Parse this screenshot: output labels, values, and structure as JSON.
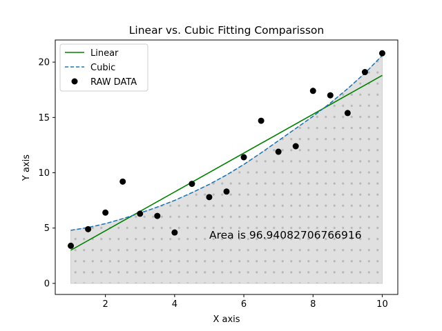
{
  "chart_data": {
    "type": "scatter",
    "title": "Linear vs. Cubic Fitting Comparisson",
    "xlabel": "X axis",
    "ylabel": "Y axis",
    "xlim": [
      0.55,
      10.45
    ],
    "ylim": [
      -1.0,
      22.0
    ],
    "xticks": [
      2,
      4,
      6,
      8,
      10
    ],
    "yticks": [
      0,
      5,
      10,
      15,
      20
    ],
    "grid": false,
    "legend_position": "top-left",
    "annotation": "Area is 96.94082706766916",
    "series": [
      {
        "name": "Linear",
        "style": "line",
        "color": "#008000",
        "x": [
          1,
          10
        ],
        "y": [
          3.0,
          18.8
        ]
      },
      {
        "name": "Cubic",
        "style": "dashed",
        "color": "#1f77b4",
        "x": [
          1,
          1.5,
          2,
          2.5,
          3,
          3.5,
          4,
          4.5,
          5,
          5.5,
          6,
          6.5,
          7,
          7.5,
          8,
          8.5,
          9,
          9.5,
          10
        ],
        "y": [
          4.8,
          5.05,
          5.4,
          5.85,
          6.35,
          6.9,
          7.5,
          8.2,
          8.95,
          9.8,
          10.75,
          11.8,
          12.9,
          14.0,
          15.1,
          16.3,
          17.6,
          19.0,
          20.6
        ]
      },
      {
        "name": "RAW DATA",
        "style": "markers",
        "color": "#000000",
        "x": [
          1,
          1.5,
          2,
          2.5,
          3,
          3.5,
          4,
          4.5,
          5,
          5.5,
          6,
          6.5,
          7,
          7.5,
          8,
          8.5,
          9,
          9.5,
          10
        ],
        "y": [
          3.4,
          4.9,
          6.4,
          9.2,
          6.3,
          6.1,
          4.6,
          9.0,
          7.8,
          8.3,
          11.4,
          14.7,
          11.9,
          12.4,
          17.4,
          17.0,
          15.4,
          19.1,
          20.8
        ]
      }
    ],
    "fill_under": {
      "of_series": "Cubic",
      "color": "#e0e0e0",
      "pattern": "dots"
    }
  }
}
